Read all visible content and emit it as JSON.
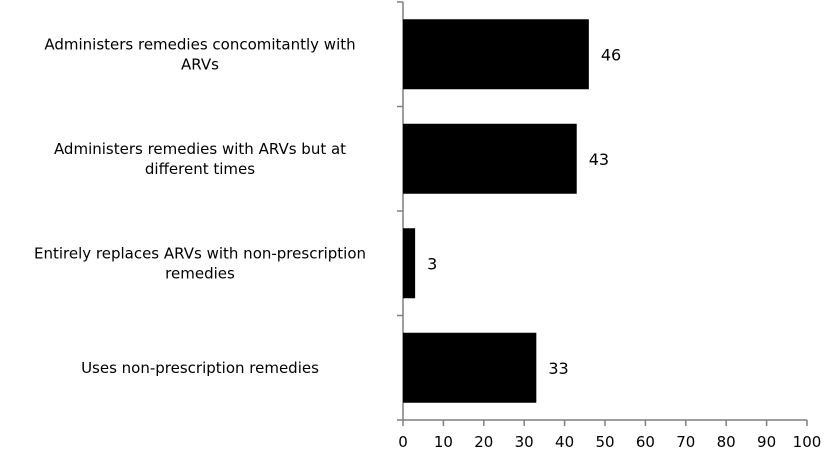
{
  "chart_data": {
    "type": "bar",
    "orientation": "horizontal",
    "title": "",
    "xlabel": "",
    "ylabel": "",
    "categories": [
      [
        "Administers remedies concomitantly with",
        "ARVs"
      ],
      [
        "Administers remedies with ARVs but at",
        "different times"
      ],
      [
        "Entirely replaces ARVs with non-prescription",
        "remedies"
      ],
      [
        "Uses non-prescription remedies"
      ]
    ],
    "values": [
      46,
      43,
      3,
      33
    ],
    "xlim": [
      0,
      100
    ],
    "xticks": [
      0,
      10,
      20,
      30,
      40,
      50,
      60,
      70,
      80,
      90,
      100
    ],
    "grid": false,
    "legend": "none",
    "bar_color": "#000000",
    "axis_color": "#7f7f7f"
  }
}
